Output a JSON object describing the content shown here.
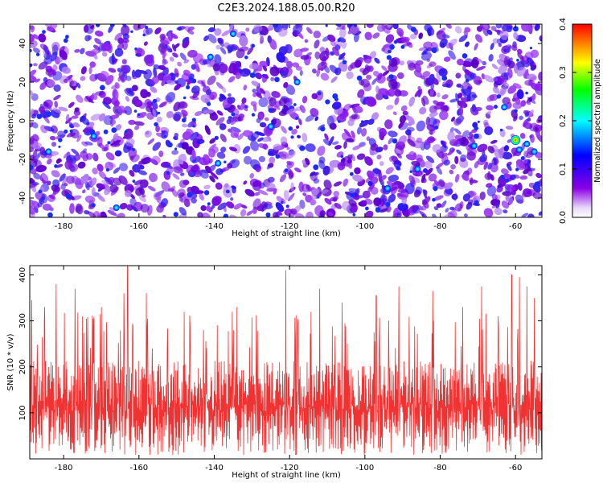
{
  "title": "C2E3.2024.188.05.00.R20",
  "chart_data": [
    {
      "type": "heatmap",
      "title": "C2E3.2024.188.05.00.R20",
      "xlabel": "Height of straight line (km)",
      "ylabel": "Frequency (Hz)",
      "xlim": [
        -189,
        -53
      ],
      "ylim": [
        -50,
        50
      ],
      "x_ticks": [
        -180,
        -160,
        -140,
        -120,
        -100,
        -80,
        -60
      ],
      "y_ticks": [
        -40,
        -20,
        0,
        20,
        40
      ],
      "colorbar": {
        "label": "Normalized spectral amplitude",
        "range": [
          0.0,
          0.4
        ],
        "ticks": [
          "0.0",
          "0.1",
          "0.2",
          "0.3",
          "0.4"
        ],
        "colors": [
          "#ffffff",
          "#8a00e6",
          "#0000ff",
          "#00ffff",
          "#00ff00",
          "#ffff00",
          "#ff0000"
        ]
      },
      "features": [
        {
          "x": -135,
          "y": 45,
          "value": 0.14
        },
        {
          "x": -141,
          "y": 33,
          "value": 0.12
        },
        {
          "x": -63,
          "y": 7,
          "value": 0.14
        },
        {
          "x": -60,
          "y": -10,
          "value": 0.33
        },
        {
          "x": -57,
          "y": -12,
          "value": 0.15
        },
        {
          "x": -55,
          "y": -16,
          "value": 0.13
        },
        {
          "x": -59,
          "y": -15,
          "value": 0.12
        },
        {
          "x": -184,
          "y": -16,
          "value": 0.13
        },
        {
          "x": -172,
          "y": -8,
          "value": 0.12
        },
        {
          "x": -139,
          "y": -22,
          "value": 0.14
        },
        {
          "x": -166,
          "y": -45,
          "value": 0.11
        },
        {
          "x": -118,
          "y": 20,
          "value": 0.12
        },
        {
          "x": -125,
          "y": -3,
          "value": 0.12
        },
        {
          "x": -71,
          "y": -13,
          "value": 0.11
        },
        {
          "x": -94,
          "y": -35,
          "value": 0.11
        },
        {
          "x": -86,
          "y": -25,
          "value": 0.11
        }
      ]
    },
    {
      "type": "line",
      "xlabel": "Height of straight line (km)",
      "ylabel": "SNR (10 * v/v)",
      "xlim": [
        -189,
        -53
      ],
      "ylim": [
        0,
        420
      ],
      "x_ticks": [
        -180,
        -160,
        -140,
        -120,
        -100,
        -80,
        -60
      ],
      "y_ticks": [
        100,
        200,
        300,
        400
      ],
      "color": "#f03232",
      "band": {
        "center": 120,
        "low": 40,
        "high": 220
      },
      "peaks": [
        {
          "x": -188.5,
          "y": 345
        },
        {
          "x": -185,
          "y": 330
        },
        {
          "x": -182,
          "y": 380
        },
        {
          "x": -177,
          "y": 370
        },
        {
          "x": -175,
          "y": 310
        },
        {
          "x": -170,
          "y": 330
        },
        {
          "x": -164,
          "y": 360
        },
        {
          "x": -163,
          "y": 418
        },
        {
          "x": -158,
          "y": 360
        },
        {
          "x": -148,
          "y": 320
        },
        {
          "x": -134,
          "y": 330
        },
        {
          "x": -121,
          "y": 410
        },
        {
          "x": -112,
          "y": 370
        },
        {
          "x": -106,
          "y": 340
        },
        {
          "x": -97,
          "y": 355
        },
        {
          "x": -91,
          "y": 375
        },
        {
          "x": -82,
          "y": 365
        },
        {
          "x": -74,
          "y": 330
        },
        {
          "x": -69,
          "y": 375
        },
        {
          "x": -61,
          "y": 400
        },
        {
          "x": -59,
          "y": 395
        },
        {
          "x": -57,
          "y": 375
        },
        {
          "x": -55,
          "y": 350
        }
      ]
    }
  ]
}
